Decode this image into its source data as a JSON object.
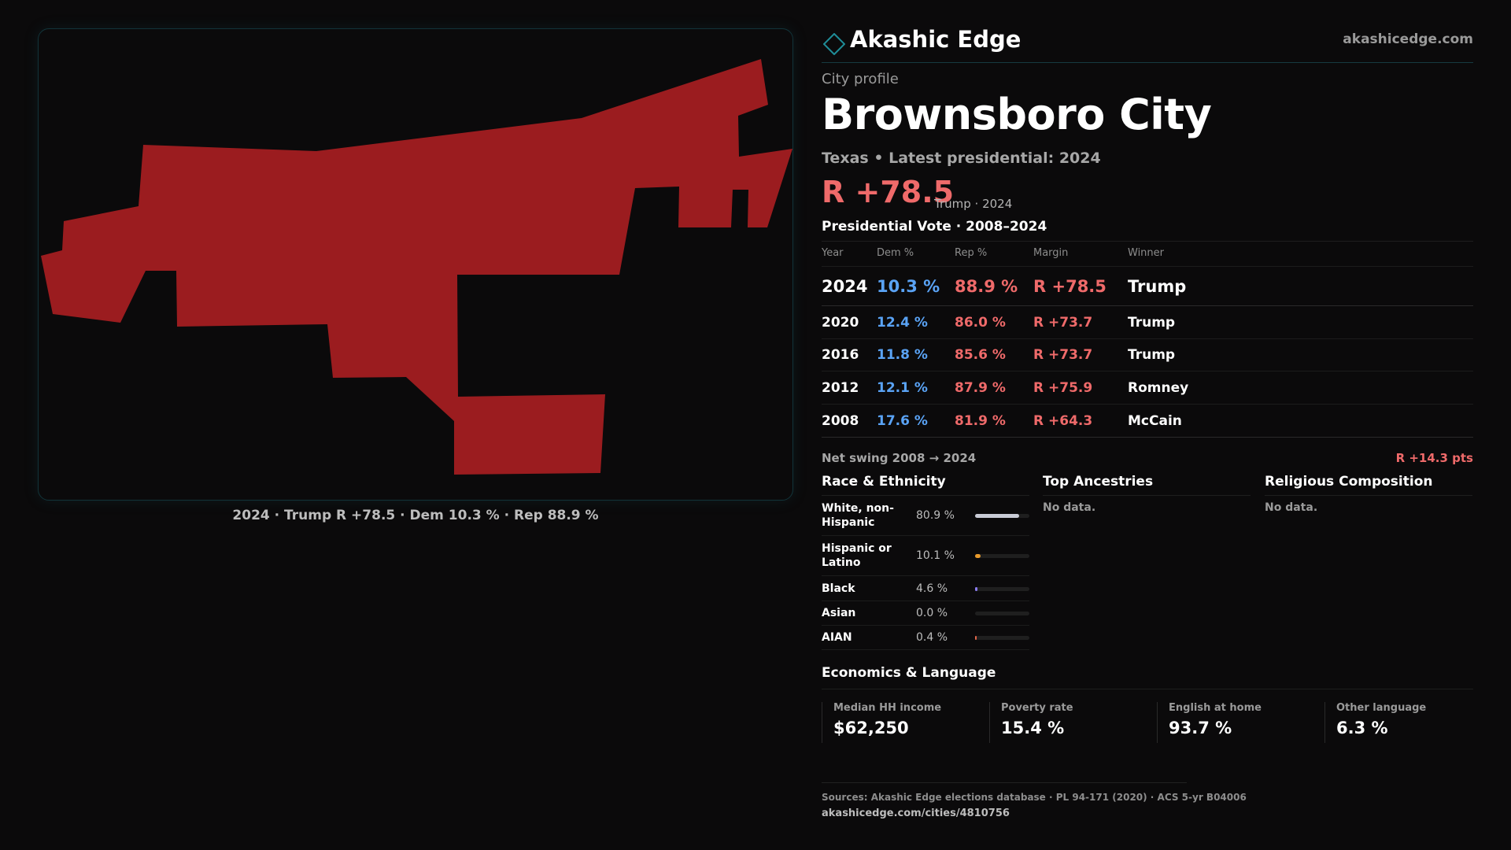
{
  "map": {
    "caption": "2024 · Trump R +78.5 · Dem 10.3 % · Rep 88.9 %",
    "fill_color": "#9b1c1f"
  },
  "brand": {
    "logo_icon": "diamond-outline-icon",
    "name": "Akashic Edge",
    "site": "akashicedge.com"
  },
  "profile": {
    "kicker": "City profile",
    "city": "Brownsboro City",
    "subline": "Texas • Latest presidential: 2024",
    "margin": "R +78.5",
    "margin_note": "Trump · 2024"
  },
  "vote": {
    "title": "Presidential Vote · 2008–2024",
    "headers": {
      "year": "Year",
      "dem": "Dem %",
      "rep": "Rep %",
      "margin": "Margin",
      "winner": "Winner"
    },
    "rows": [
      {
        "year": "2024",
        "dem": "10.3 %",
        "rep": "88.9 %",
        "margin": "R +78.5",
        "winner": "Trump"
      },
      {
        "year": "2020",
        "dem": "12.4 %",
        "rep": "86.0 %",
        "margin": "R +73.7",
        "winner": "Trump"
      },
      {
        "year": "2016",
        "dem": "11.8 %",
        "rep": "85.6 %",
        "margin": "R +73.7",
        "winner": "Trump"
      },
      {
        "year": "2012",
        "dem": "12.1 %",
        "rep": "87.9 %",
        "margin": "R +75.9",
        "winner": "Romney"
      },
      {
        "year": "2008",
        "dem": "17.6 %",
        "rep": "81.9 %",
        "margin": "R +64.3",
        "winner": "McCain"
      }
    ],
    "swing_label": "Net swing 2008 → 2024",
    "swing_value": "R +14.3 pts"
  },
  "race": {
    "title": "Race & Ethnicity",
    "items": [
      {
        "label": "White, non-Hispanic",
        "pct": "80.9 %",
        "value": 80.9,
        "color": "#c9ccd6"
      },
      {
        "label": "Hispanic or Latino",
        "pct": "10.1 %",
        "value": 10.1,
        "color": "#e89a2c"
      },
      {
        "label": "Black",
        "pct": "4.6 %",
        "value": 4.6,
        "color": "#8b7cf0"
      },
      {
        "label": "Asian",
        "pct": "0.0 %",
        "value": 0.0,
        "color": "#4fb6c9"
      },
      {
        "label": "AIAN",
        "pct": "0.4 %",
        "value": 0.4,
        "color": "#e3674a"
      }
    ]
  },
  "ancestries": {
    "title": "Top Ancestries",
    "empty": "No data."
  },
  "religion": {
    "title": "Religious Composition",
    "empty": "No data."
  },
  "economics": {
    "title": "Economics & Language",
    "cards": [
      {
        "label": "Median HH income",
        "value": "$62,250"
      },
      {
        "label": "Poverty rate",
        "value": "15.4 %"
      },
      {
        "label": "English at home",
        "value": "93.7 %"
      },
      {
        "label": "Other language",
        "value": "6.3 %"
      }
    ]
  },
  "sources": {
    "text": "Sources: Akashic Edge elections database · PL 94-171 (2020) · ACS 5-yr B04006",
    "url": "akashicedge.com/cities/4810756"
  }
}
